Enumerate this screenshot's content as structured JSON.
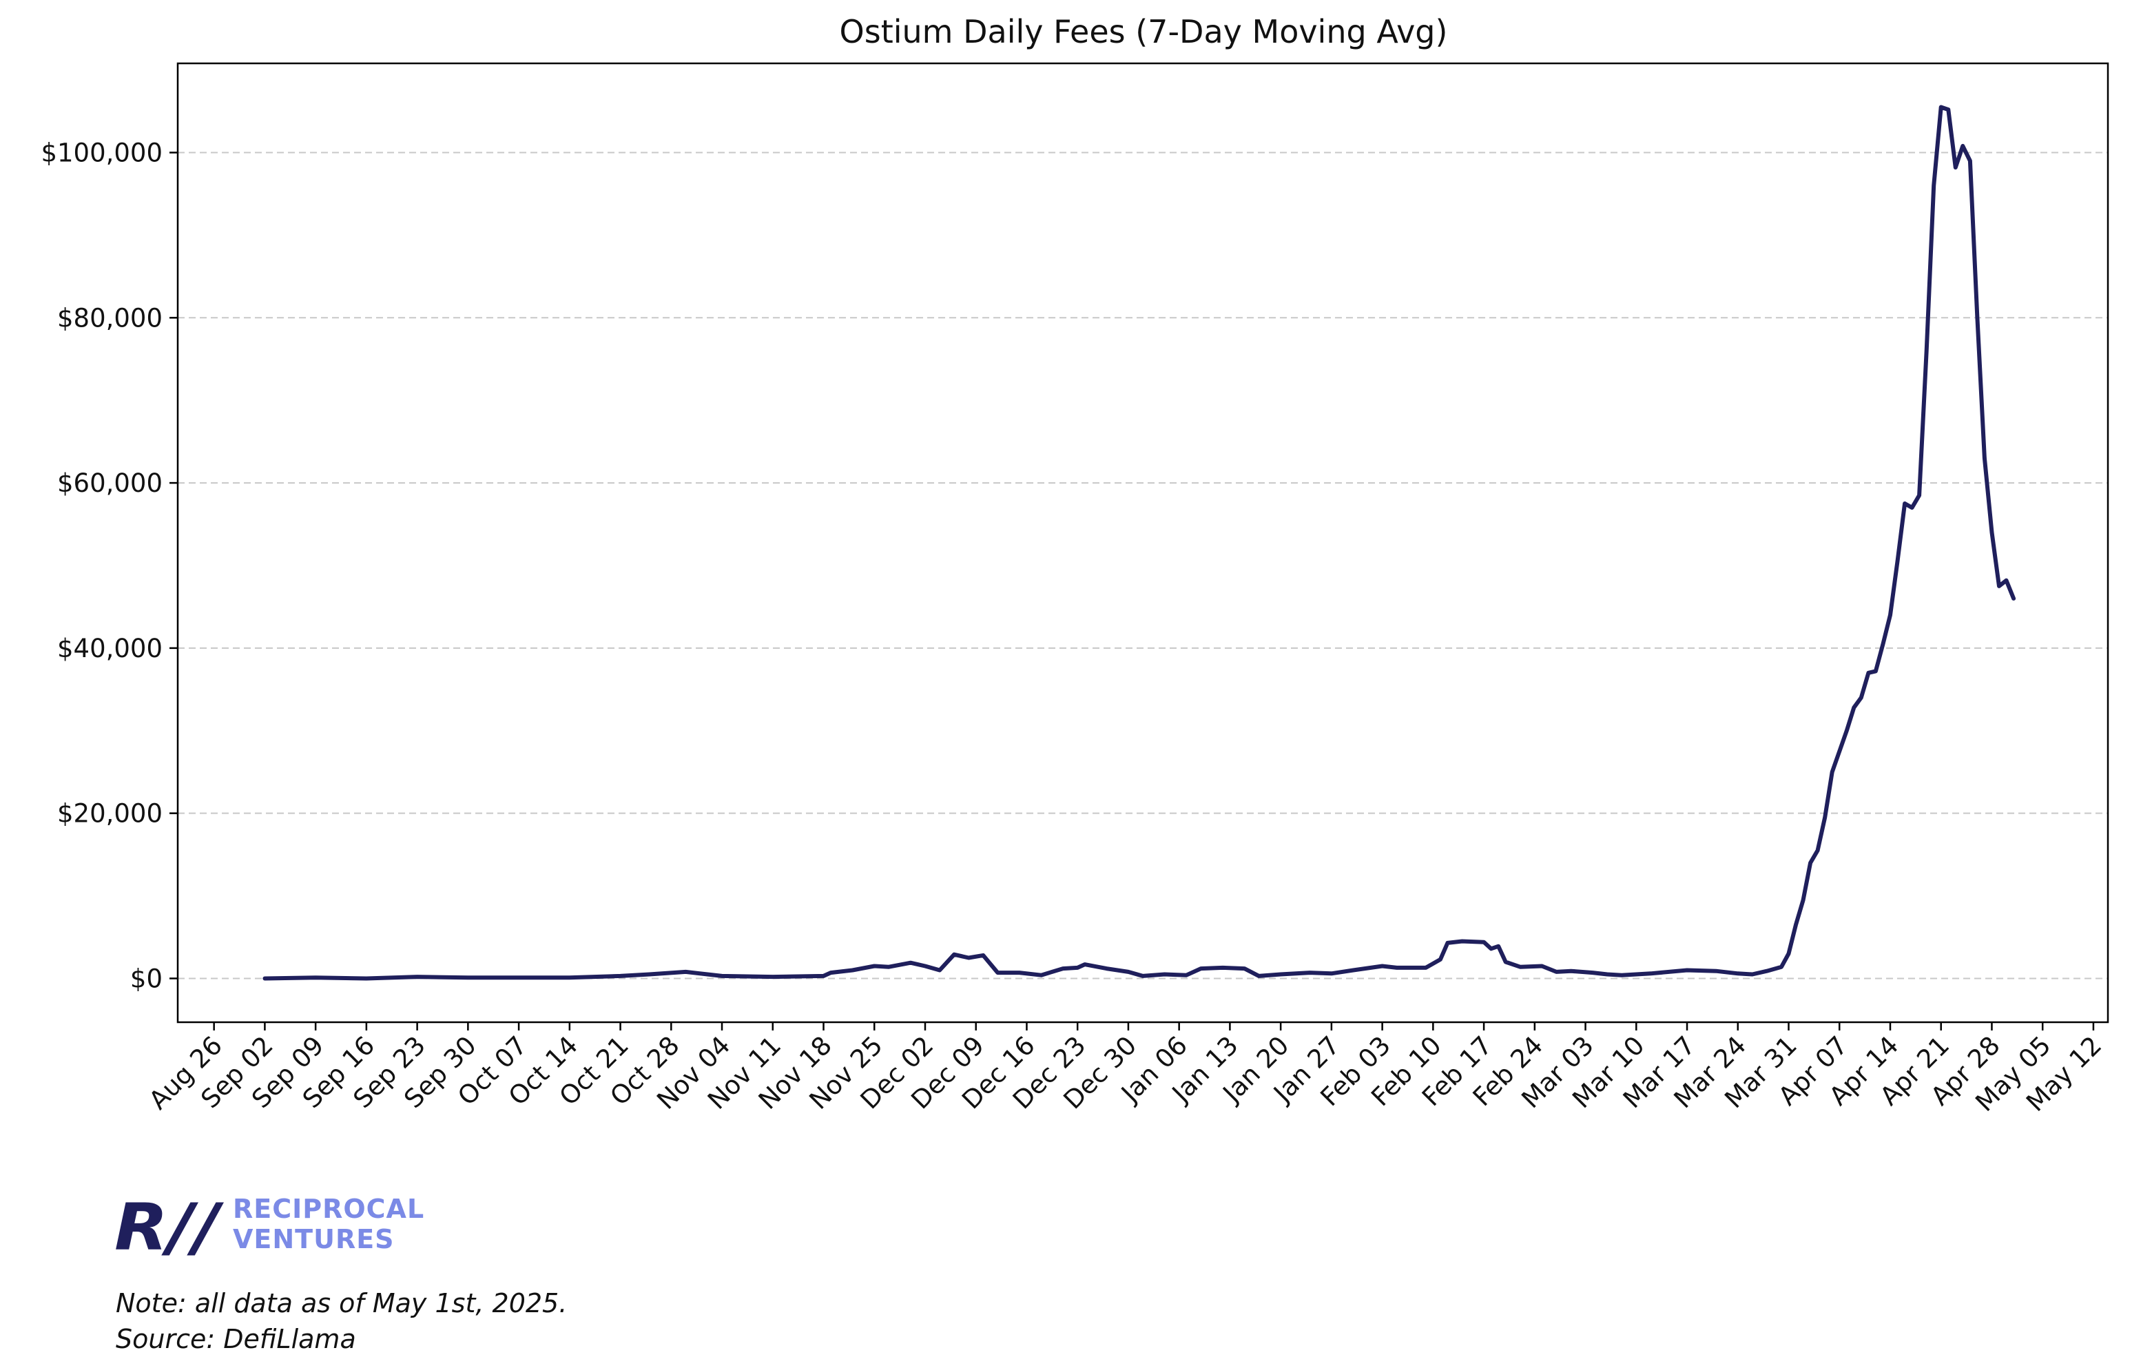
{
  "chart_data": {
    "type": "line",
    "title": "Ostium Daily Fees (7-Day Moving Avg)",
    "xlabel": "",
    "ylabel": "",
    "y_tick_labels": [
      "$0",
      "$20,000",
      "$40,000",
      "$60,000",
      "$80,000",
      "$100,000"
    ],
    "y_ticks": [
      0,
      20000,
      40000,
      60000,
      80000,
      100000
    ],
    "ylim": [
      -5300,
      110800
    ],
    "xlim": [
      "2024-08-21",
      "2025-05-14"
    ],
    "x_tick_labels": [
      "Aug 26",
      "Sep 02",
      "Sep 09",
      "Sep 16",
      "Sep 23",
      "Sep 30",
      "Oct 07",
      "Oct 14",
      "Oct 21",
      "Oct 28",
      "Nov 04",
      "Nov 11",
      "Nov 18",
      "Nov 25",
      "Dec 02",
      "Dec 09",
      "Dec 16",
      "Dec 23",
      "Dec 30",
      "Jan 06",
      "Jan 13",
      "Jan 20",
      "Jan 27",
      "Feb 03",
      "Feb 10",
      "Feb 17",
      "Feb 24",
      "Mar 03",
      "Mar 10",
      "Mar 17",
      "Mar 24",
      "Mar 31",
      "Apr 07",
      "Apr 14",
      "Apr 21",
      "Apr 28",
      "May 05",
      "May 12"
    ],
    "x_ticks": [
      "2024-08-26",
      "2024-09-02",
      "2024-09-09",
      "2024-09-16",
      "2024-09-23",
      "2024-09-30",
      "2024-10-07",
      "2024-10-14",
      "2024-10-21",
      "2024-10-28",
      "2024-11-04",
      "2024-11-11",
      "2024-11-18",
      "2024-11-25",
      "2024-12-02",
      "2024-12-09",
      "2024-12-16",
      "2024-12-23",
      "2024-12-30",
      "2025-01-06",
      "2025-01-13",
      "2025-01-20",
      "2025-01-27",
      "2025-02-03",
      "2025-02-10",
      "2025-02-17",
      "2025-02-24",
      "2025-03-03",
      "2025-03-10",
      "2025-03-17",
      "2025-03-24",
      "2025-03-31",
      "2025-04-07",
      "2025-04-14",
      "2025-04-21",
      "2025-04-28",
      "2025-05-05",
      "2025-05-12"
    ],
    "grid": "y-dashed",
    "legend": "none",
    "series": [
      {
        "color": "#1f1f5c",
        "points": [
          [
            "2024-09-02",
            0
          ],
          [
            "2024-09-09",
            100
          ],
          [
            "2024-09-16",
            0
          ],
          [
            "2024-09-23",
            200
          ],
          [
            "2024-09-30",
            100
          ],
          [
            "2024-10-07",
            100
          ],
          [
            "2024-10-14",
            100
          ],
          [
            "2024-10-21",
            300
          ],
          [
            "2024-10-25",
            500
          ],
          [
            "2024-10-30",
            800
          ],
          [
            "2024-11-02",
            500
          ],
          [
            "2024-11-04",
            300
          ],
          [
            "2024-11-11",
            200
          ],
          [
            "2024-11-18",
            300
          ],
          [
            "2024-11-19",
            700
          ],
          [
            "2024-11-22",
            1000
          ],
          [
            "2024-11-25",
            1500
          ],
          [
            "2024-11-27",
            1400
          ],
          [
            "2024-11-30",
            1900
          ],
          [
            "2024-12-02",
            1500
          ],
          [
            "2024-12-04",
            1000
          ],
          [
            "2024-12-06",
            2900
          ],
          [
            "2024-12-08",
            2500
          ],
          [
            "2024-12-10",
            2800
          ],
          [
            "2024-12-12",
            700
          ],
          [
            "2024-12-15",
            700
          ],
          [
            "2024-12-18",
            400
          ],
          [
            "2024-12-21",
            1200
          ],
          [
            "2024-12-23",
            1300
          ],
          [
            "2024-12-24",
            1700
          ],
          [
            "2024-12-27",
            1200
          ],
          [
            "2024-12-30",
            800
          ],
          [
            "2025-01-01",
            300
          ],
          [
            "2025-01-04",
            500
          ],
          [
            "2025-01-07",
            400
          ],
          [
            "2025-01-09",
            1200
          ],
          [
            "2025-01-12",
            1300
          ],
          [
            "2025-01-15",
            1200
          ],
          [
            "2025-01-17",
            300
          ],
          [
            "2025-01-20",
            500
          ],
          [
            "2025-01-24",
            700
          ],
          [
            "2025-01-27",
            600
          ],
          [
            "2025-01-30",
            1000
          ],
          [
            "2025-02-03",
            1500
          ],
          [
            "2025-02-05",
            1300
          ],
          [
            "2025-02-09",
            1300
          ],
          [
            "2025-02-11",
            2300
          ],
          [
            "2025-02-12",
            4300
          ],
          [
            "2025-02-14",
            4500
          ],
          [
            "2025-02-17",
            4400
          ],
          [
            "2025-02-18",
            3600
          ],
          [
            "2025-02-19",
            3900
          ],
          [
            "2025-02-20",
            2000
          ],
          [
            "2025-02-22",
            1400
          ],
          [
            "2025-02-25",
            1500
          ],
          [
            "2025-02-27",
            800
          ],
          [
            "2025-03-01",
            900
          ],
          [
            "2025-03-04",
            700
          ],
          [
            "2025-03-06",
            500
          ],
          [
            "2025-03-08",
            400
          ],
          [
            "2025-03-12",
            600
          ],
          [
            "2025-03-17",
            1000
          ],
          [
            "2025-03-21",
            900
          ],
          [
            "2025-03-24",
            600
          ],
          [
            "2025-03-26",
            500
          ],
          [
            "2025-03-28",
            900
          ],
          [
            "2025-03-30",
            1400
          ],
          [
            "2025-03-31",
            3000
          ],
          [
            "2025-04-01",
            6500
          ],
          [
            "2025-04-02",
            9500
          ],
          [
            "2025-04-03",
            14000
          ],
          [
            "2025-04-04",
            15500
          ],
          [
            "2025-04-05",
            19500
          ],
          [
            "2025-04-06",
            25000
          ],
          [
            "2025-04-08",
            30000
          ],
          [
            "2025-04-09",
            32800
          ],
          [
            "2025-04-10",
            34000
          ],
          [
            "2025-04-11",
            37000
          ],
          [
            "2025-04-12",
            37200
          ],
          [
            "2025-04-13",
            40500
          ],
          [
            "2025-04-14",
            44000
          ],
          [
            "2025-04-15",
            50500
          ],
          [
            "2025-04-16",
            57500
          ],
          [
            "2025-04-17",
            57000
          ],
          [
            "2025-04-18",
            58500
          ],
          [
            "2025-04-19",
            76000
          ],
          [
            "2025-04-20",
            96000
          ],
          [
            "2025-04-21",
            105500
          ],
          [
            "2025-04-22",
            105200
          ],
          [
            "2025-04-23",
            98200
          ],
          [
            "2025-04-24",
            100800
          ],
          [
            "2025-04-25",
            99000
          ],
          [
            "2025-04-26",
            80000
          ],
          [
            "2025-04-27",
            63000
          ],
          [
            "2025-04-28",
            54000
          ],
          [
            "2025-04-29",
            47500
          ],
          [
            "2025-04-30",
            48200
          ],
          [
            "2025-05-01",
            46000
          ]
        ]
      }
    ]
  },
  "logo": {
    "mark": "R//",
    "line1": "RECIPROCAL",
    "line2": "VENTURES"
  },
  "notes": {
    "line1": "Note: all data as of May 1st, 2025.",
    "line2": "Source: DefiLlama"
  }
}
